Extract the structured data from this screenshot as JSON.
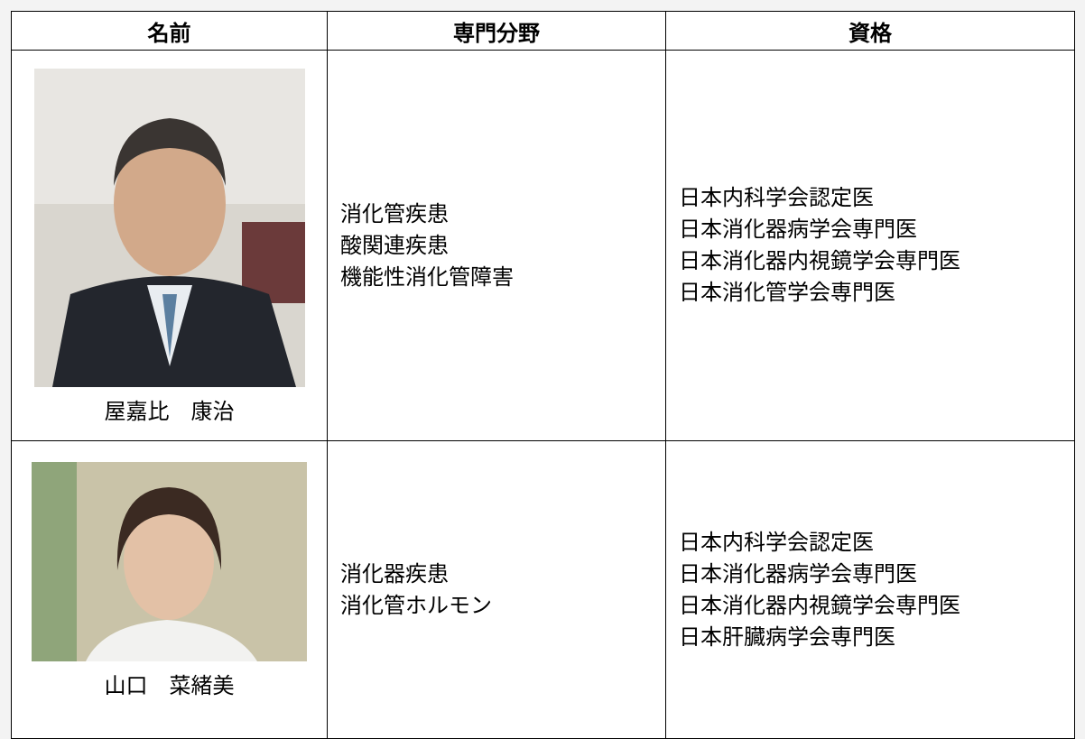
{
  "table": {
    "headers": [
      "名前",
      "専門分野",
      "資格"
    ],
    "rows": [
      {
        "name": "屋嘉比　康治",
        "specialties": [
          "消化管疾患",
          "酸関連疾患",
          "機能性消化管障害"
        ],
        "qualifications": [
          "日本内科学会認定医",
          "日本消化器病学会専門医",
          "日本消化器内視鏡学会専門医",
          "日本消化管学会専門医"
        ]
      },
      {
        "name": "山口　菜緒美",
        "specialties": [
          "消化器疾患",
          "消化管ホルモン"
        ],
        "qualifications": [
          "日本内科学会認定医",
          "日本消化器病学会専門医",
          "日本消化器内視鏡学会専門医",
          "日本肝臓病学会専門医"
        ]
      }
    ]
  }
}
